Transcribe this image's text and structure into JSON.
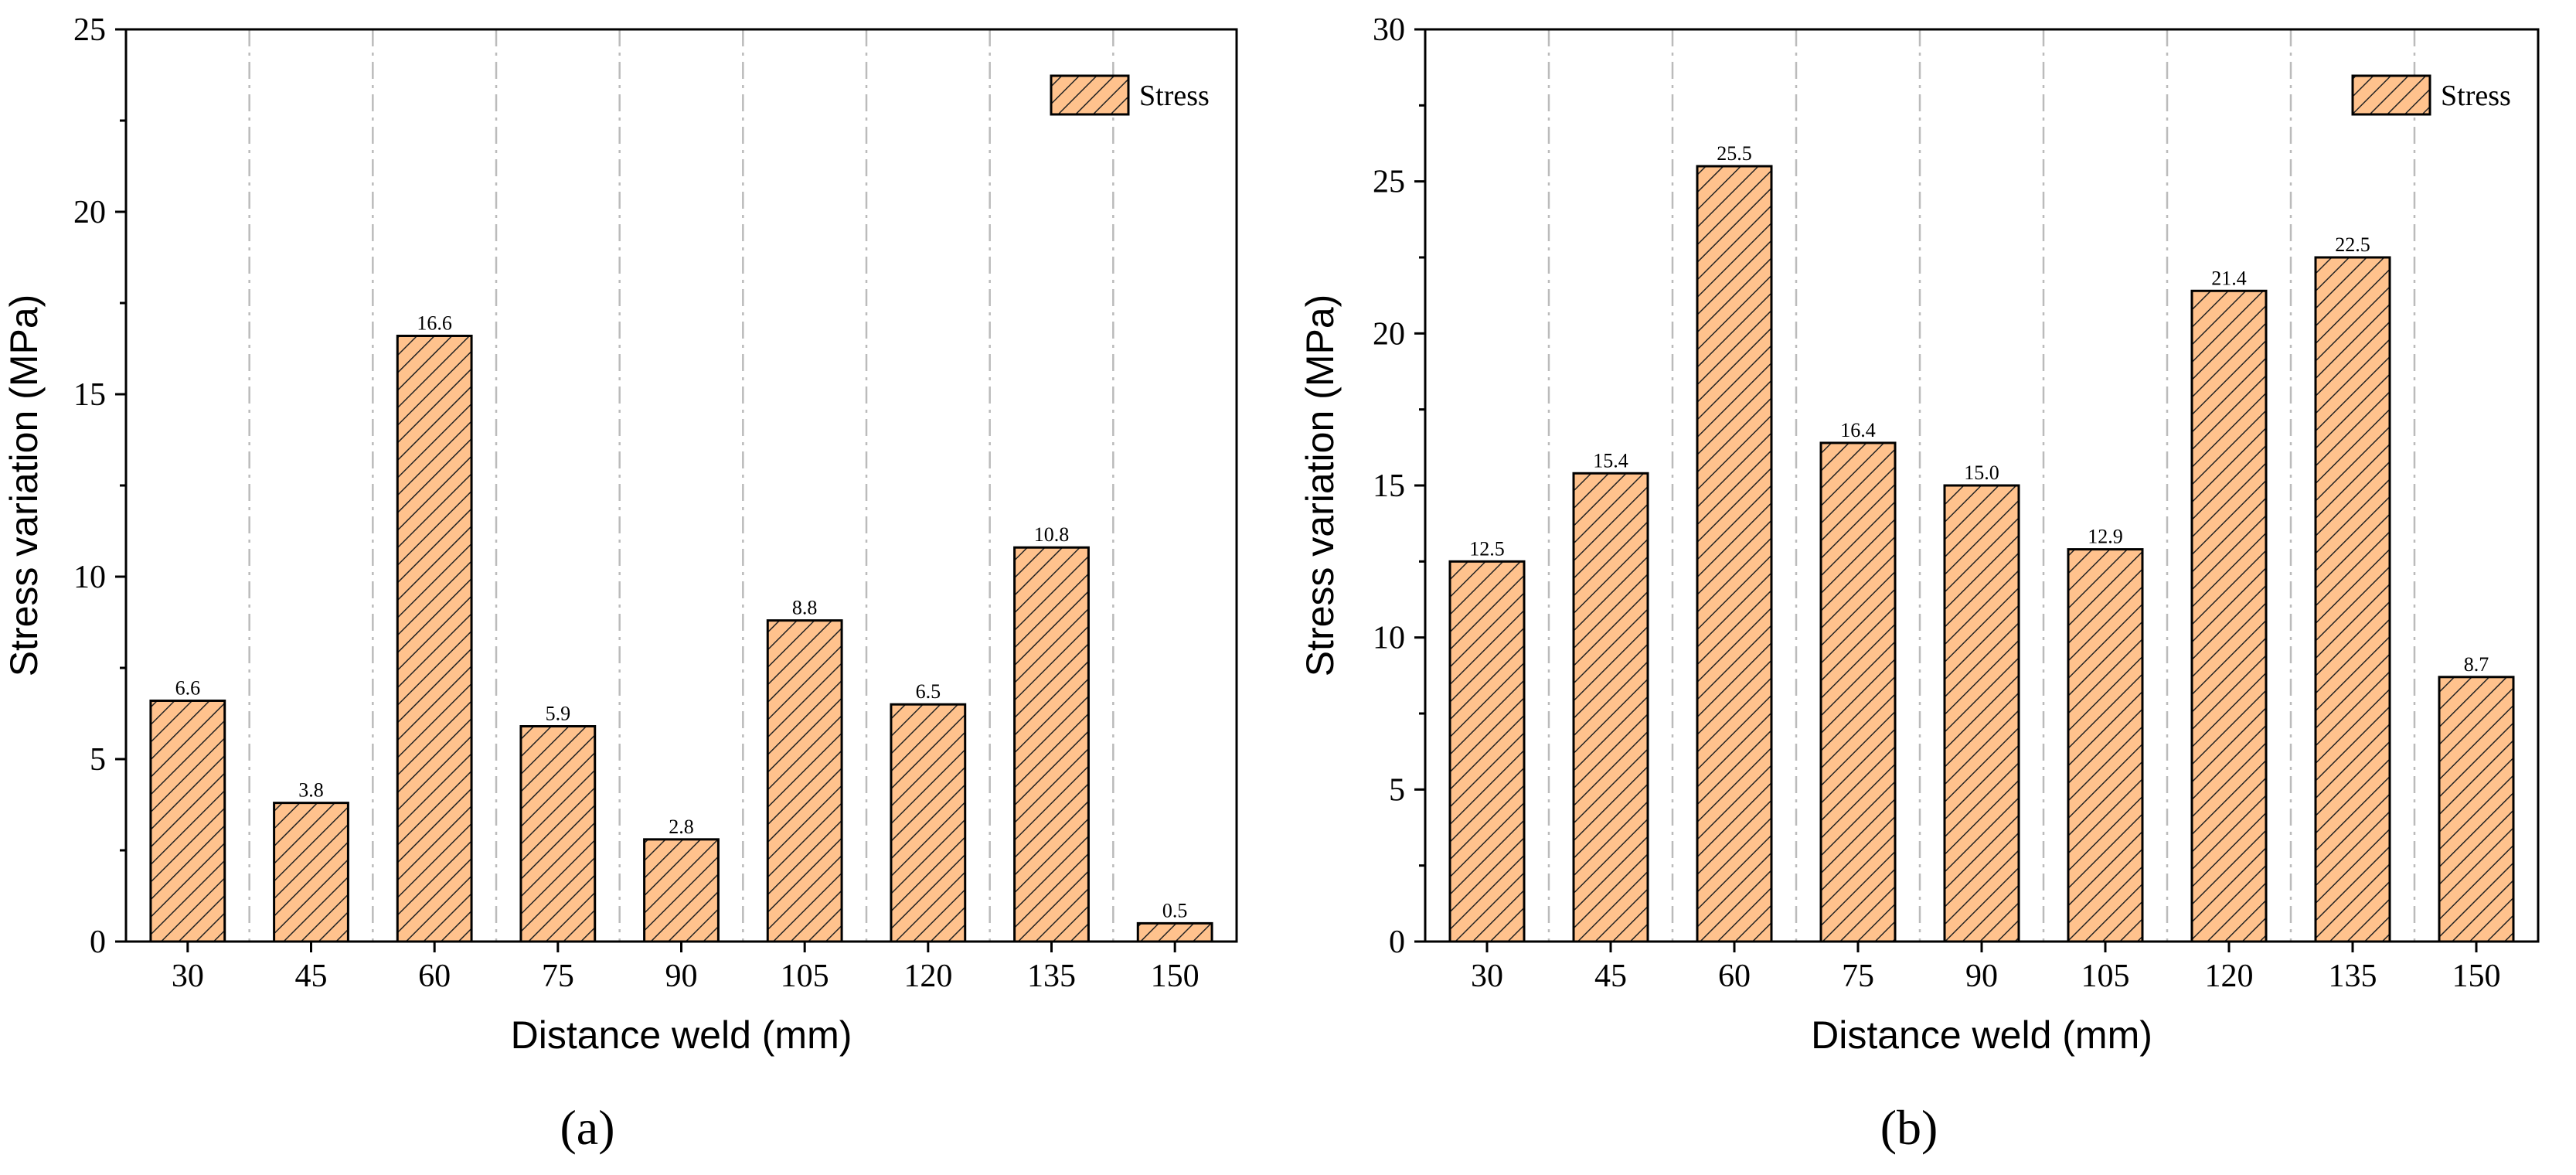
{
  "bar_color": "#FFC28D",
  "hatch_color": "#222222",
  "grid_color": "#BBBBBB",
  "chart_data": [
    {
      "type": "bar",
      "panel_label": "(a)",
      "title": "",
      "xlabel": "Distance weld (mm)",
      "ylabel": "Stress variation (MPa)",
      "categories": [
        "30",
        "45",
        "60",
        "75",
        "90",
        "105",
        "120",
        "135",
        "150"
      ],
      "series": [
        {
          "name": "Stress",
          "values": [
            6.6,
            3.8,
            16.6,
            5.9,
            2.8,
            8.8,
            6.5,
            10.8,
            0.5
          ]
        }
      ],
      "data_labels": [
        "6.6",
        "3.8",
        "16.6",
        "5.9",
        "2.8",
        "8.8",
        "6.5",
        "10.8",
        "0.5"
      ],
      "ylim": [
        0,
        25
      ],
      "yticks": [
        "0",
        "5",
        "10",
        "15",
        "20",
        "25"
      ],
      "legend": "top-right",
      "grid": "vertical dash-dot"
    },
    {
      "type": "bar",
      "panel_label": "(b)",
      "title": "",
      "xlabel": "Distance weld (mm)",
      "ylabel": "Stress variation (MPa)",
      "categories": [
        "30",
        "45",
        "60",
        "75",
        "90",
        "105",
        "120",
        "135",
        "150"
      ],
      "series": [
        {
          "name": "Stress",
          "values": [
            12.5,
            15.4,
            25.5,
            16.4,
            15.0,
            12.9,
            21.4,
            22.5,
            8.7
          ]
        }
      ],
      "data_labels": [
        "12.5",
        "15.4",
        "25.5",
        "16.4",
        "15.0",
        "12.9",
        "21.4",
        "22.5",
        "8.7"
      ],
      "ylim": [
        0,
        30
      ],
      "yticks": [
        "0",
        "5",
        "10",
        "15",
        "20",
        "25",
        "30"
      ],
      "legend": "top-right",
      "grid": "vertical dash-dot"
    }
  ]
}
